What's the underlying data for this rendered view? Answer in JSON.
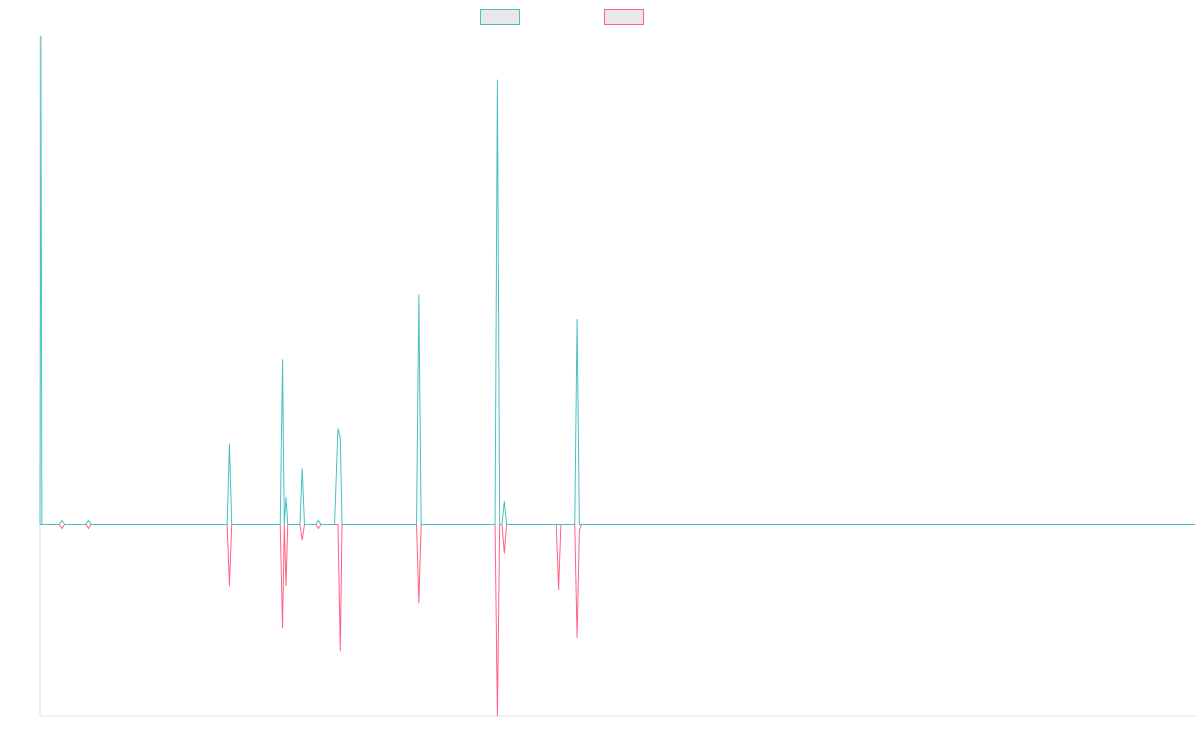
{
  "chart_data": {
    "type": "line",
    "title": "",
    "xlabel": "",
    "ylabel": "",
    "grid": false,
    "legend_position": "top",
    "xlim": [
      0,
      1000
    ],
    "ylim": [
      -100,
      255
    ],
    "series": [
      {
        "name": "",
        "color": "#4bc0c0",
        "fill": "#e8e8e8",
        "points": [
          [
            0,
            0
          ],
          [
            0.8,
            255
          ],
          [
            1.6,
            0
          ],
          [
            20,
            0
          ],
          [
            162,
            0
          ],
          [
            164,
            42
          ],
          [
            166,
            0
          ],
          [
            208,
            0
          ],
          [
            210,
            86
          ],
          [
            211.5,
            0
          ],
          [
            213,
            14
          ],
          [
            214.5,
            0
          ],
          [
            225,
            0
          ],
          [
            227,
            29
          ],
          [
            229,
            0
          ],
          [
            255,
            0
          ],
          [
            258,
            50
          ],
          [
            260,
            45
          ],
          [
            261.5,
            0
          ],
          [
            326,
            0
          ],
          [
            328,
            120
          ],
          [
            330,
            0
          ],
          [
            394,
            0
          ],
          [
            396,
            232
          ],
          [
            398,
            0
          ],
          [
            400,
            0
          ],
          [
            402,
            12
          ],
          [
            404,
            0
          ],
          [
            447,
            0
          ],
          [
            463,
            0
          ],
          [
            465,
            107
          ],
          [
            467,
            0
          ],
          [
            1000,
            0
          ]
        ]
      },
      {
        "name": "",
        "color": "#ff6384",
        "fill": "#e8e8e8",
        "points": [
          [
            0,
            0
          ],
          [
            20,
            0
          ],
          [
            162,
            0
          ],
          [
            164,
            -32
          ],
          [
            166,
            0
          ],
          [
            208,
            0
          ],
          [
            210,
            -54
          ],
          [
            211.5,
            0
          ],
          [
            213,
            -32
          ],
          [
            214.5,
            0
          ],
          [
            225,
            0
          ],
          [
            227,
            -8
          ],
          [
            229,
            0
          ],
          [
            258,
            0
          ],
          [
            260,
            -66
          ],
          [
            261.5,
            0
          ],
          [
            326,
            0
          ],
          [
            328,
            -41
          ],
          [
            330,
            0
          ],
          [
            394,
            0
          ],
          [
            396,
            -100
          ],
          [
            398,
            0
          ],
          [
            400,
            0
          ],
          [
            402,
            -15
          ],
          [
            404,
            0
          ],
          [
            447,
            0
          ],
          [
            449,
            -34
          ],
          [
            451,
            0
          ],
          [
            463,
            0
          ],
          [
            465,
            -59
          ],
          [
            467,
            -3
          ],
          [
            469,
            0
          ],
          [
            1000,
            0
          ]
        ]
      }
    ],
    "markers": [
      {
        "x": 19,
        "y": 0
      },
      {
        "x": 42,
        "y": 0
      },
      {
        "x": 241,
        "y": 0
      }
    ],
    "axis_color": "#e0e0e0"
  }
}
